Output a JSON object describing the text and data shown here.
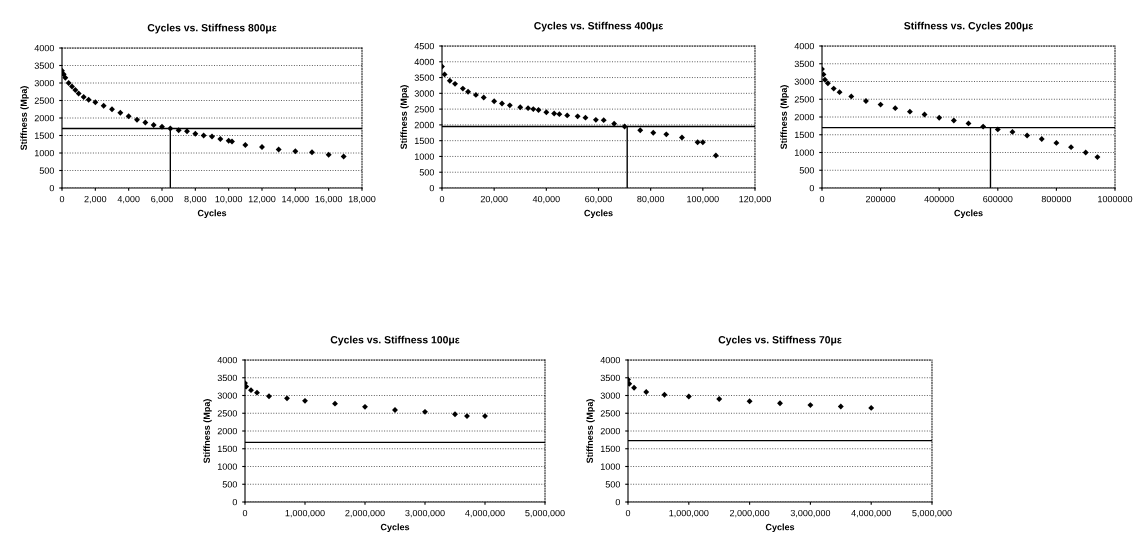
{
  "chart_data": [
    {
      "type": "scatter",
      "title": "Cycles vs. Stiffness 800με",
      "xlabel": "Cycles",
      "ylabel": "Stiffness (Mpa)",
      "marker": "diamond",
      "grid": "y",
      "color": "#000000",
      "x": [
        0,
        100,
        200,
        400,
        600,
        800,
        1000,
        1300,
        1600,
        2000,
        2500,
        3000,
        3500,
        4000,
        4500,
        5000,
        5500,
        6000,
        6500,
        7000,
        7500,
        8000,
        8500,
        9000,
        9500,
        10000,
        10200,
        11000,
        12000,
        13000,
        14000,
        15000,
        16000,
        16900
      ],
      "values": [
        3350,
        3250,
        3150,
        3000,
        2900,
        2800,
        2700,
        2600,
        2520,
        2450,
        2350,
        2250,
        2150,
        2050,
        1950,
        1870,
        1800,
        1750,
        1700,
        1650,
        1620,
        1550,
        1500,
        1470,
        1400,
        1350,
        1330,
        1230,
        1170,
        1100,
        1050,
        1020,
        950,
        900
      ],
      "xlim": [
        0,
        18000
      ],
      "ylim": [
        0,
        4000
      ],
      "xticks": [
        0,
        {
          "value": 2000,
          "label": "2,000"
        },
        {
          "value": 4000,
          "label": "4,000"
        },
        {
          "value": 6000,
          "label": "6,000"
        },
        {
          "value": 8000,
          "label": "8,000"
        },
        {
          "value": 10000,
          "label": "10,000"
        },
        {
          "value": 12000,
          "label": "12,000"
        },
        {
          "value": 14000,
          "label": "14,000"
        },
        {
          "value": 16000,
          "label": "16,000"
        },
        {
          "value": 18000,
          "label": "18,000"
        }
      ],
      "yticks": [
        0,
        500,
        1000,
        1500,
        2000,
        2500,
        3000,
        3500,
        4000
      ],
      "ref_lines": [
        {
          "axis": "y",
          "value": 1700,
          "color": "#000000"
        },
        {
          "axis": "x",
          "value": 6500,
          "color": "#000000"
        }
      ]
    },
    {
      "type": "scatter",
      "title": "Cycles vs. Stiffness 400με",
      "xlabel": "Cycles",
      "ylabel": "Stiffness (Mpa)",
      "marker": "diamond",
      "grid": "y",
      "color": "#000000",
      "x": [
        0,
        1000,
        3000,
        5000,
        8000,
        10000,
        13000,
        16000,
        20000,
        23000,
        26000,
        30000,
        33000,
        35000,
        37000,
        40000,
        43000,
        45000,
        48000,
        52000,
        55000,
        59000,
        62000,
        66000,
        70000,
        76000,
        81000,
        86000,
        92000,
        98000,
        100000,
        105000
      ],
      "values": [
        3850,
        3600,
        3400,
        3300,
        3150,
        3050,
        2950,
        2870,
        2750,
        2680,
        2620,
        2560,
        2530,
        2500,
        2470,
        2400,
        2360,
        2340,
        2300,
        2270,
        2230,
        2160,
        2150,
        2040,
        1950,
        1830,
        1750,
        1700,
        1600,
        1450,
        1450,
        1030
      ],
      "xlim": [
        0,
        120000
      ],
      "ylim": [
        0,
        4500
      ],
      "xticks": [
        0,
        {
          "value": 20000,
          "label": "20,000"
        },
        {
          "value": 40000,
          "label": "40,000"
        },
        {
          "value": 60000,
          "label": "60,000"
        },
        {
          "value": 80000,
          "label": "80,000"
        },
        {
          "value": 100000,
          "label": "100,000"
        },
        {
          "value": 120000,
          "label": "120,000"
        }
      ],
      "yticks": [
        0,
        500,
        1000,
        1500,
        2000,
        2500,
        3000,
        3500,
        4000,
        4500
      ],
      "ref_lines": [
        {
          "axis": "y",
          "value": 1950,
          "color": "#000000"
        },
        {
          "axis": "x",
          "value": 71000,
          "color": "#000000"
        }
      ]
    },
    {
      "type": "scatter",
      "title": "Stiffness vs. Cycles 200με",
      "xlabel": "Cycles",
      "ylabel": "Stiffness (Mpa)",
      "marker": "diamond",
      "grid": "y",
      "color": "#000000",
      "x": [
        0,
        5000,
        10000,
        20000,
        40000,
        60000,
        100000,
        150000,
        200000,
        250000,
        300000,
        350000,
        400000,
        450000,
        500000,
        550000,
        600000,
        650000,
        700000,
        750000,
        800000,
        850000,
        900000,
        940000
      ],
      "values": [
        3350,
        3200,
        3050,
        2950,
        2800,
        2700,
        2580,
        2450,
        2350,
        2250,
        2150,
        2070,
        1980,
        1900,
        1820,
        1730,
        1650,
        1580,
        1480,
        1380,
        1270,
        1150,
        1000,
        870
      ],
      "xlim": [
        0,
        1000000
      ],
      "ylim": [
        0,
        4000
      ],
      "xticks": [
        0,
        200000,
        400000,
        600000,
        800000,
        1000000
      ],
      "yticks": [
        0,
        500,
        1000,
        1500,
        2000,
        2500,
        3000,
        3500,
        4000
      ],
      "ref_lines": [
        {
          "axis": "y",
          "value": 1700,
          "color": "#000000"
        },
        {
          "axis": "x",
          "value": 575000,
          "color": "#000000"
        }
      ]
    },
    {
      "type": "scatter",
      "title": "Cycles vs. Stiffness 100με",
      "xlabel": "Cycles",
      "ylabel": "Stiffness (Mpa)",
      "marker": "diamond",
      "grid": "y",
      "color": "#000000",
      "x": [
        0,
        20000,
        100000,
        200000,
        400000,
        700000,
        1000000,
        1500000,
        2000000,
        2500000,
        3000000,
        3500000,
        3700000,
        4000000
      ],
      "values": [
        3350,
        3250,
        3150,
        3080,
        2980,
        2920,
        2850,
        2770,
        2680,
        2590,
        2540,
        2470,
        2420,
        2420
      ],
      "xlim": [
        0,
        5000000
      ],
      "ylim": [
        0,
        4000
      ],
      "xticks": [
        0,
        {
          "value": 1000000,
          "label": "1,000,000"
        },
        {
          "value": 2000000,
          "label": "2,000,000"
        },
        {
          "value": 3000000,
          "label": "3,000,000"
        },
        {
          "value": 4000000,
          "label": "4,000,000"
        },
        {
          "value": 5000000,
          "label": "5,000,000"
        }
      ],
      "yticks": [
        0,
        500,
        1000,
        1500,
        2000,
        2500,
        3000,
        3500,
        4000
      ],
      "ref_lines": [
        {
          "axis": "y",
          "value": 1680,
          "color": "#000000"
        }
      ]
    },
    {
      "type": "scatter",
      "title": "Cycles vs. Stiffness 70με",
      "xlabel": "Cycles",
      "ylabel": "Stiffness (Mpa)",
      "marker": "diamond",
      "grid": "y",
      "color": "#000000",
      "x": [
        0,
        20000,
        100000,
        300000,
        600000,
        1000000,
        1500000,
        2000000,
        2500000,
        3000000,
        3500000,
        4000000
      ],
      "values": [
        3450,
        3330,
        3220,
        3100,
        3020,
        2970,
        2900,
        2840,
        2780,
        2730,
        2690,
        2650
      ],
      "xlim": [
        0,
        5000000
      ],
      "ylim": [
        0,
        4000
      ],
      "xticks": [
        0,
        {
          "value": 1000000,
          "label": "1,000,000"
        },
        {
          "value": 2000000,
          "label": "2,000,000"
        },
        {
          "value": 3000000,
          "label": "3,000,000"
        },
        {
          "value": 4000000,
          "label": "4,000,000"
        },
        {
          "value": 5000000,
          "label": "5,000,000"
        }
      ],
      "yticks": [
        0,
        500,
        1000,
        1500,
        2000,
        2500,
        3000,
        3500,
        4000
      ],
      "ref_lines": [
        {
          "axis": "y",
          "value": 1730,
          "color": "#000000"
        }
      ]
    }
  ]
}
